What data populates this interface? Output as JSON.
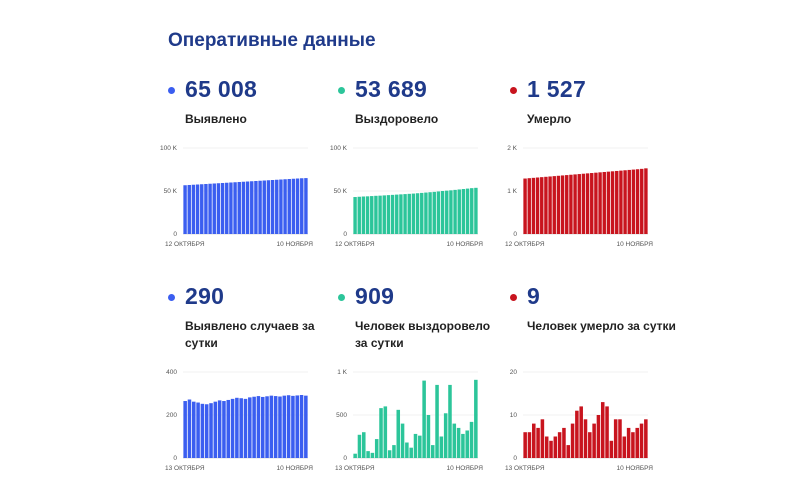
{
  "page_title": "Оперативные данные",
  "stats": [
    {
      "value": "65 008",
      "label": "Выявлено",
      "color": "#3b5ef0"
    },
    {
      "value": "53 689",
      "label": "Выздоровело",
      "color": "#2cc59a"
    },
    {
      "value": "1 527",
      "label": "Умерло",
      "color": "#c8141e"
    },
    {
      "value": "290",
      "label": "Выявлено случаев за сутки",
      "color": "#3b5ef0"
    },
    {
      "value": "909",
      "label": "Человек выздоровело за сутки",
      "color": "#2cc59a"
    },
    {
      "value": "9",
      "label": "Человек умерло за сутки",
      "color": "#c8141e"
    }
  ],
  "chart_data": [
    {
      "type": "bar",
      "color": "#3b5ef0",
      "title": "",
      "xlabel": "",
      "ylabel": "",
      "ylim": [
        0,
        100000
      ],
      "yticks": [
        0,
        50000,
        100000
      ],
      "ytick_labels": [
        "0",
        "50 K",
        "100 K"
      ],
      "x_start": "12 октября",
      "x_end": "10 ноября",
      "xtick_labels": [
        "12 ОКТЯБРЯ",
        "10 НОЯБРЯ"
      ],
      "values": [
        56700,
        56990,
        57280,
        57570,
        57860,
        58150,
        58440,
        58730,
        59020,
        59310,
        59600,
        59890,
        60180,
        60470,
        60760,
        61050,
        61340,
        61630,
        61920,
        62210,
        62500,
        62790,
        63080,
        63370,
        63660,
        63950,
        64240,
        64530,
        64820,
        65008
      ]
    },
    {
      "type": "bar",
      "color": "#2cc59a",
      "title": "",
      "xlabel": "",
      "ylabel": "",
      "ylim": [
        0,
        100000
      ],
      "yticks": [
        0,
        50000,
        100000
      ],
      "ytick_labels": [
        "0",
        "50 K",
        "100 K"
      ],
      "x_start": "12 октября",
      "x_end": "10 ноября",
      "xtick_labels": [
        "12 ОКТЯБРЯ",
        "10 НОЯБРЯ"
      ],
      "values": [
        43000,
        43300,
        43600,
        43800,
        44100,
        44400,
        44600,
        44900,
        45200,
        45500,
        45800,
        46100,
        46400,
        46700,
        47000,
        47400,
        47800,
        48200,
        48600,
        49000,
        49500,
        50000,
        50400,
        50800,
        51300,
        51800,
        52300,
        52800,
        53300,
        53689
      ]
    },
    {
      "type": "bar",
      "color": "#c8141e",
      "title": "",
      "xlabel": "",
      "ylabel": "",
      "ylim": [
        0,
        2000
      ],
      "yticks": [
        0,
        1000,
        2000
      ],
      "ytick_labels": [
        "0",
        "1 K",
        "2 K"
      ],
      "x_start": "12 октября",
      "x_end": "10 ноября",
      "xtick_labels": [
        "12 ОКТЯБРЯ",
        "10 НОЯБРЯ"
      ],
      "values": [
        1290,
        1298,
        1306,
        1314,
        1322,
        1330,
        1338,
        1346,
        1354,
        1362,
        1370,
        1378,
        1386,
        1394,
        1402,
        1410,
        1418,
        1426,
        1434,
        1442,
        1450,
        1458,
        1466,
        1474,
        1482,
        1490,
        1498,
        1506,
        1515,
        1527
      ]
    },
    {
      "type": "bar",
      "color": "#3b5ef0",
      "title": "",
      "xlabel": "",
      "ylabel": "",
      "ylim": [
        0,
        400
      ],
      "yticks": [
        0,
        200,
        400
      ],
      "ytick_labels": [
        "0",
        "200",
        "400"
      ],
      "x_start": "13 октября",
      "x_end": "10 ноября",
      "xtick_labels": [
        "13 ОКТЯБРЯ",
        "10 НОЯБРЯ"
      ],
      "values": [
        265,
        272,
        262,
        258,
        252,
        250,
        255,
        262,
        268,
        265,
        270,
        275,
        280,
        278,
        275,
        282,
        285,
        288,
        284,
        287,
        290,
        288,
        286,
        290,
        292,
        289,
        291,
        293,
        290
      ]
    },
    {
      "type": "bar",
      "color": "#2cc59a",
      "title": "",
      "xlabel": "",
      "ylabel": "",
      "ylim": [
        0,
        1000
      ],
      "yticks": [
        0,
        500,
        1000
      ],
      "ytick_labels": [
        "0",
        "500",
        "1 K"
      ],
      "x_start": "13 октября",
      "x_end": "10 ноября",
      "xtick_labels": [
        "13 ОКТЯБРЯ",
        "10 НОЯБРЯ"
      ],
      "values": [
        50,
        270,
        300,
        80,
        60,
        220,
        580,
        600,
        90,
        150,
        560,
        400,
        180,
        120,
        280,
        260,
        900,
        500,
        150,
        850,
        250,
        520,
        850,
        400,
        350,
        280,
        320,
        420,
        909
      ]
    },
    {
      "type": "bar",
      "color": "#c8141e",
      "title": "",
      "xlabel": "",
      "ylabel": "",
      "ylim": [
        0,
        20
      ],
      "yticks": [
        0,
        10,
        20
      ],
      "ytick_labels": [
        "0",
        "10",
        "20"
      ],
      "x_start": "13 октября",
      "x_end": "10 ноября",
      "xtick_labels": [
        "13 ОКТЯБРЯ",
        "10 НОЯБРЯ"
      ],
      "values": [
        6,
        6,
        8,
        7,
        9,
        5,
        4,
        5,
        6,
        7,
        3,
        8,
        11,
        12,
        9,
        6,
        8,
        10,
        13,
        12,
        4,
        9,
        9,
        5,
        7,
        6,
        7,
        8,
        9
      ]
    }
  ]
}
